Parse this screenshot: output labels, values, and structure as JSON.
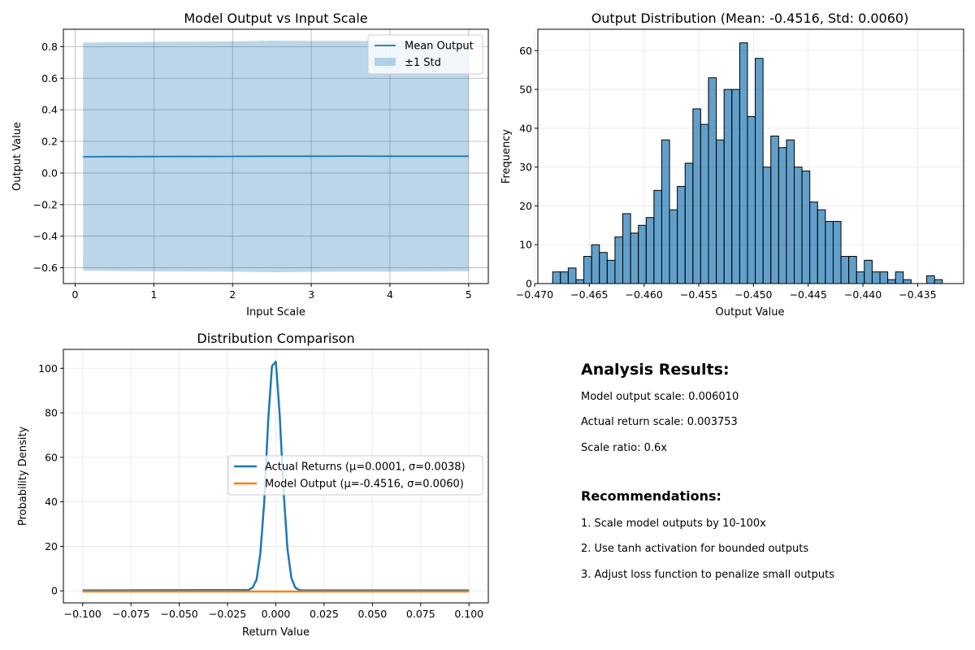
{
  "chart_data": [
    {
      "type": "area",
      "title": "Model Output vs Input Scale",
      "xlabel": "Input Scale",
      "ylabel": "Output Value",
      "xlim": [
        -0.15,
        5.25
      ],
      "ylim": [
        -0.7,
        0.91
      ],
      "xticks": [
        0,
        1,
        2,
        3,
        4,
        5
      ],
      "yticks": [
        -0.6,
        -0.4,
        -0.2,
        0.0,
        0.2,
        0.4,
        0.6,
        0.8
      ],
      "grid": true,
      "legend_position": "top-right",
      "x": [
        0.1,
        1.0,
        2.0,
        2.5,
        3.0,
        3.5,
        4.0,
        5.0
      ],
      "series": [
        {
          "name": "Mean Output",
          "kind": "line",
          "color": "#1f77b4",
          "values": [
            0.103,
            0.104,
            0.105,
            0.106,
            0.106,
            0.107,
            0.106,
            0.106
          ]
        },
        {
          "name": "±1 Std",
          "kind": "band",
          "color": "#1f77b4",
          "upper": [
            0.826,
            0.83,
            0.833,
            0.838,
            0.836,
            0.836,
            0.836,
            0.83
          ],
          "lower": [
            -0.618,
            -0.623,
            -0.625,
            -0.628,
            -0.626,
            -0.624,
            -0.625,
            -0.622
          ]
        }
      ]
    },
    {
      "type": "bar",
      "title": "Output Distribution (Mean: -0.4516, Std: 0.0060)",
      "xlabel": "Output Value",
      "ylabel": "Frequency",
      "xlim": [
        -0.4697,
        -0.4308
      ],
      "ylim": [
        0,
        65.5
      ],
      "xticks": [
        -0.47,
        -0.465,
        -0.46,
        -0.455,
        -0.45,
        -0.445,
        -0.44,
        -0.435
      ],
      "xtick_labels": [
        "−0.470",
        "−0.465",
        "−0.460",
        "−0.455",
        "−0.450",
        "−0.445",
        "−0.440",
        "−0.435"
      ],
      "yticks": [
        0,
        10,
        20,
        30,
        40,
        50,
        60
      ],
      "grid": true,
      "color": "#1f77b4",
      "bin_start": -0.46835,
      "bin_width": 0.000712,
      "values": [
        3,
        3,
        4,
        1,
        7,
        10,
        8,
        6,
        12,
        18,
        13,
        15,
        17,
        24,
        37,
        19,
        25,
        31,
        45,
        41,
        53,
        37,
        50,
        50,
        62,
        43,
        58,
        30,
        38,
        35,
        37,
        30,
        29,
        21,
        19,
        16,
        16,
        7,
        7,
        3,
        6,
        3,
        3,
        1,
        3,
        1,
        0,
        0,
        2,
        1
      ]
    },
    {
      "type": "line",
      "title": "Distribution Comparison",
      "xlabel": "Return Value",
      "ylabel": "Probability Density",
      "xlim": [
        -0.11,
        0.11
      ],
      "ylim": [
        -5.4,
        108.5
      ],
      "xticks": [
        -0.1,
        -0.075,
        -0.05,
        -0.025,
        0.0,
        0.025,
        0.05,
        0.075,
        0.1
      ],
      "xtick_labels": [
        "−0.100",
        "−0.075",
        "−0.050",
        "−0.025",
        "0.000",
        "0.025",
        "0.050",
        "0.075",
        "0.100"
      ],
      "yticks": [
        0,
        20,
        40,
        60,
        80,
        100
      ],
      "grid": true,
      "legend_position": "center-right",
      "series": [
        {
          "name": "Actual Returns (μ=0.0001, σ=0.0038)",
          "color": "#1f77b4",
          "x": [
            -0.1,
            -0.014,
            -0.012,
            -0.01,
            -0.008,
            -0.006,
            -0.004,
            -0.002,
            0.0,
            0.002,
            0.004,
            0.006,
            0.008,
            0.01,
            0.012,
            0.014,
            0.1
          ],
          "values": [
            0.2,
            0.4,
            1.5,
            5,
            17,
            40,
            76,
            101,
            103,
            79,
            45,
            19,
            6,
            1.5,
            0.4,
            0.2,
            0.2
          ]
        },
        {
          "name": "Model Output (μ=-0.4516, σ=0.0060)",
          "color": "#ff7f0e",
          "x": [
            -0.1,
            0.1
          ],
          "values": [
            -0.3,
            -0.3
          ]
        }
      ]
    }
  ],
  "text_panel": {
    "heading": "Analysis Results:",
    "lines": [
      "Model output scale: 0.006010",
      "Actual return scale: 0.003753",
      "Scale ratio: 0.6x"
    ],
    "subheading": "Recommendations:",
    "recommendations": [
      "1. Scale model outputs by 10-100x",
      "2. Use tanh activation for bounded outputs",
      "3. Adjust loss function to penalize small outputs"
    ]
  }
}
